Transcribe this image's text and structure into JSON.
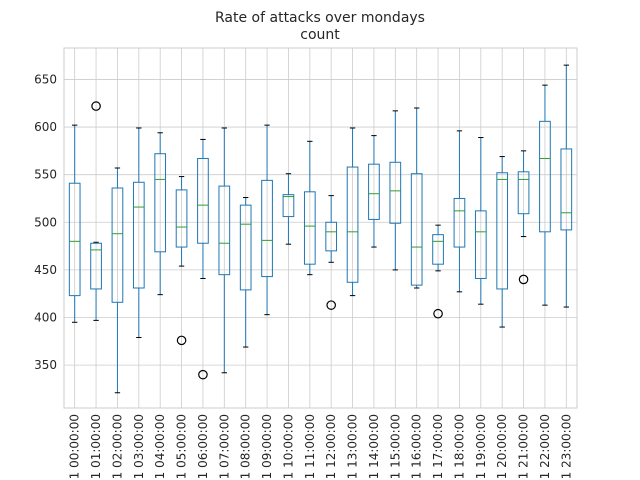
{
  "chart_data": {
    "type": "box",
    "title": "Rate of attacks over mondays",
    "subtitle": "count",
    "xlabel": "",
    "ylabel": "",
    "ylim": [
      305,
      683
    ],
    "yticks": [
      350,
      400,
      450,
      500,
      550,
      600,
      650
    ],
    "grid": true,
    "categories": [
      "1 00:00:00",
      "1 01:00:00",
      "1 02:00:00",
      "1 03:00:00",
      "1 04:00:00",
      "1 05:00:00",
      "1 06:00:00",
      "1 07:00:00",
      "1 08:00:00",
      "1 09:00:00",
      "1 10:00:00",
      "1 11:00:00",
      "1 12:00:00",
      "1 13:00:00",
      "1 14:00:00",
      "1 15:00:00",
      "1 16:00:00",
      "1 17:00:00",
      "1 18:00:00",
      "1 19:00:00",
      "1 20:00:00",
      "1 21:00:00",
      "1 22:00:00",
      "1 23:00:00"
    ],
    "boxes": [
      {
        "whislo": 395,
        "q1": 423,
        "med": 480,
        "q3": 541,
        "whishi": 602,
        "fliers": []
      },
      {
        "whislo": 397,
        "q1": 430,
        "med": 471,
        "q3": 478,
        "whishi": 479,
        "fliers": [
          622
        ]
      },
      {
        "whislo": 321,
        "q1": 416,
        "med": 488,
        "q3": 536,
        "whishi": 557,
        "fliers": []
      },
      {
        "whislo": 379,
        "q1": 431,
        "med": 516,
        "q3": 542,
        "whishi": 599,
        "fliers": []
      },
      {
        "whislo": 424,
        "q1": 469,
        "med": 545,
        "q3": 572,
        "whishi": 594,
        "fliers": []
      },
      {
        "whislo": 454,
        "q1": 474,
        "med": 495,
        "q3": 534,
        "whishi": 548,
        "fliers": [
          376
        ]
      },
      {
        "whislo": 441,
        "q1": 478,
        "med": 518,
        "q3": 567,
        "whishi": 587,
        "fliers": [
          340
        ]
      },
      {
        "whislo": 342,
        "q1": 445,
        "med": 478,
        "q3": 538,
        "whishi": 599,
        "fliers": []
      },
      {
        "whislo": 369,
        "q1": 429,
        "med": 498,
        "q3": 518,
        "whishi": 526,
        "fliers": []
      },
      {
        "whislo": 403,
        "q1": 443,
        "med": 481,
        "q3": 544,
        "whishi": 602,
        "fliers": []
      },
      {
        "whislo": 477,
        "q1": 506,
        "med": 527,
        "q3": 529,
        "whishi": 551,
        "fliers": []
      },
      {
        "whislo": 445,
        "q1": 456,
        "med": 496,
        "q3": 532,
        "whishi": 585,
        "fliers": []
      },
      {
        "whislo": 458,
        "q1": 470,
        "med": 490,
        "q3": 500,
        "whishi": 528,
        "fliers": [
          413
        ]
      },
      {
        "whislo": 423,
        "q1": 437,
        "med": 490,
        "q3": 558,
        "whishi": 599,
        "fliers": []
      },
      {
        "whislo": 474,
        "q1": 503,
        "med": 530,
        "q3": 561,
        "whishi": 591,
        "fliers": []
      },
      {
        "whislo": 450,
        "q1": 499,
        "med": 533,
        "q3": 563,
        "whishi": 617,
        "fliers": []
      },
      {
        "whislo": 431,
        "q1": 434,
        "med": 474,
        "q3": 551,
        "whishi": 620,
        "fliers": []
      },
      {
        "whislo": 449,
        "q1": 456,
        "med": 480,
        "q3": 487,
        "whishi": 497,
        "fliers": [
          404
        ]
      },
      {
        "whislo": 427,
        "q1": 474,
        "med": 512,
        "q3": 525,
        "whishi": 596,
        "fliers": []
      },
      {
        "whislo": 414,
        "q1": 441,
        "med": 490,
        "q3": 512,
        "whishi": 589,
        "fliers": []
      },
      {
        "whislo": 390,
        "q1": 430,
        "med": 545,
        "q3": 552,
        "whishi": 569,
        "fliers": []
      },
      {
        "whislo": 485,
        "q1": 509,
        "med": 545,
        "q3": 553,
        "whishi": 575,
        "fliers": [
          440
        ]
      },
      {
        "whislo": 413,
        "q1": 490,
        "med": 567,
        "q3": 606,
        "whishi": 644,
        "fliers": []
      },
      {
        "whislo": 411,
        "q1": 492,
        "med": 510,
        "q3": 577,
        "whishi": 665,
        "fliers": []
      }
    ]
  },
  "colors": {
    "box": "#1f77b4",
    "median": "#2ca02c",
    "grid": "#cccccc",
    "frame": "#cccccc",
    "flier": "#000000"
  }
}
